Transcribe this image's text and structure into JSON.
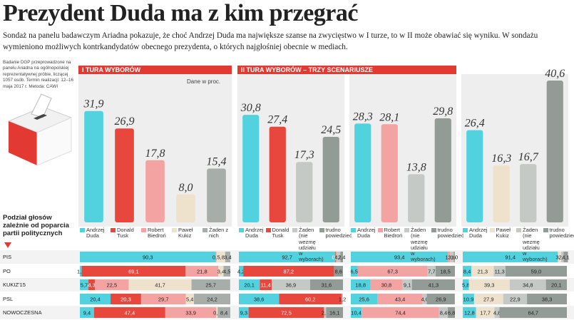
{
  "title": "Prezydent Duda ma z kim przegrać",
  "subtitle": "Sondaż na panelu badawczym Ariadna pokazuje, że choć Andrzej Duda ma największe szanse na zwycięstwo w I turze, to w II może obawiać się wyniku. W sondażu wymieniono możliwych kontrkandydatów obecnego prezydenta, o których najgłośniej obecnie w mediach.",
  "method_note": "Badanie DGP przeprowadzone na panelu Ariadna na ogólnopolskiej reprezentatywnej próbie, liczącej 1057 osób. Termin realizacji: 12–16 maja 2017 r. Metoda: CAWI",
  "round1_header": "I TURA WYBORÓW",
  "unit_note": "Dane w proc.",
  "round2_header": "II TURA WYBORÓW – TRZY SCENARIUSZE",
  "breakdown_title": "Podział głosów zależnie od poparcia partii politycznych",
  "parties": [
    "PIS",
    "PO",
    "KUKIZ'15",
    "PSL",
    "NOWOCZESNA"
  ],
  "chart_data": [
    {
      "type": "bar",
      "categories": [
        "Andrzej Duda",
        "Donald Tusk",
        "Robert Biedroń",
        "Paweł Kukiz",
        "Żaden z nich"
      ],
      "colors": [
        "#52d2df",
        "#e8473e",
        "#f3a4a2",
        "#efe2cc",
        "#a7aeaa"
      ],
      "values": [
        31.9,
        26.9,
        17.8,
        8.0,
        15.4
      ],
      "value_labels": [
        "31,9",
        "26,9",
        "17,8",
        "8,0",
        "15,4"
      ],
      "breakdown": [
        {
          "values": [
            90.3,
            null,
            0.5,
            5.8,
            3.4
          ],
          "value_labels": [
            "90,3",
            null,
            "0,5",
            "5,8",
            "3,4"
          ]
        },
        {
          "values": [
            1.2,
            69.1,
            21.8,
            3.4,
            4.5
          ],
          "value_labels": [
            "1,2",
            "69,1",
            "21,8",
            "3,4",
            "4,5"
          ]
        },
        {
          "values": [
            5.7,
            4.3,
            22.5,
            41.7,
            25.7
          ],
          "value_labels": [
            "5,7",
            "4,3",
            "22,5",
            "41,7",
            "25,7"
          ]
        },
        {
          "values": [
            20.4,
            20.3,
            29.7,
            5.4,
            24.2
          ],
          "value_labels": [
            "20,4",
            "20,3",
            "29,7",
            "5,4",
            "24,2"
          ]
        },
        {
          "values": [
            9.4,
            47.4,
            33.9,
            0.9,
            8.4
          ],
          "value_labels": [
            "9,4",
            "47,4",
            "33,9",
            "0,9",
            "8,4"
          ]
        }
      ]
    },
    {
      "type": "bar",
      "categories": [
        "Andrzej Duda",
        "Donald Tusk",
        "Żaden (nie wezmę udziału w wyborach)",
        "trudno powiedzieć"
      ],
      "colors": [
        "#52d2df",
        "#e8473e",
        "#c4c9c6",
        "#939b97"
      ],
      "values": [
        30.8,
        27.4,
        17.3,
        24.5
      ],
      "value_labels": [
        "30,8",
        "27,4",
        "17,3",
        "24,5"
      ],
      "breakdown": [
        {
          "values": [
            92.7,
            0.7,
            4.2,
            2.4
          ],
          "value_labels": [
            "92,7",
            "0,7",
            "4,2",
            "2,4"
          ]
        },
        {
          "values": [
            4.2,
            87.2,
            null,
            8.6
          ],
          "value_labels": [
            "4,2",
            "87,2",
            null,
            "8,6"
          ]
        },
        {
          "values": [
            20.1,
            11.4,
            36.9,
            31.6
          ],
          "value_labels": [
            "20,1",
            "11,4",
            "36,9",
            "31,6"
          ]
        },
        {
          "values": [
            38.6,
            60.2,
            1.2,
            null
          ],
          "value_labels": [
            "38,6",
            "60,2",
            "1,2",
            null
          ]
        },
        {
          "values": [
            9.3,
            72.5,
            2.1,
            16.1
          ],
          "value_labels": [
            "9,3",
            "72,5",
            "2,1",
            "16,1"
          ]
        }
      ]
    },
    {
      "type": "bar",
      "categories": [
        "Andrzej Duda",
        "Robert Biedroń",
        "Żaden (nie wezmę udziału w wyborach)",
        "trudno powiedzieć"
      ],
      "colors": [
        "#52d2df",
        "#f3a4a2",
        "#c4c9c6",
        "#939b97"
      ],
      "values": [
        28.3,
        28.1,
        13.8,
        29.8
      ],
      "value_labels": [
        "28,3",
        "28,1",
        "13,8",
        "29,8"
      ],
      "breakdown": [
        {
          "values": [
            93.4,
            1.9,
            3.6,
            1.0
          ],
          "value_labels": [
            "93,4",
            "1,9",
            "3,6",
            "1,0"
          ]
        },
        {
          "values": [
            6.5,
            67.3,
            7.7,
            18.5
          ],
          "value_labels": [
            "6,5",
            "67,3",
            "7,7",
            "18,5"
          ]
        },
        {
          "values": [
            18.8,
            30.8,
            9.1,
            41.3
          ],
          "value_labels": [
            "18,8",
            "30,8",
            "9,1",
            "41,3"
          ]
        },
        {
          "values": [
            25.6,
            43.4,
            4.0,
            26.9
          ],
          "value_labels": [
            "25,6",
            "43,4",
            "4,0",
            "26,9"
          ]
        },
        {
          "values": [
            10.4,
            74.4,
            8.4,
            6.8
          ],
          "value_labels": [
            "10,4",
            "74,4",
            "8,4",
            "6,8"
          ]
        }
      ]
    },
    {
      "type": "bar",
      "categories": [
        "Andrzej Duda",
        "Paweł Kukiz",
        "Żaden (nie wezmę udziału w wyborach)",
        "trudno powiedzieć"
      ],
      "colors": [
        "#52d2df",
        "#efe2cc",
        "#c4c9c6",
        "#939b97"
      ],
      "values": [
        26.4,
        16.3,
        16.7,
        40.6
      ],
      "value_labels": [
        "26,4",
        "16,3",
        "16,7",
        "40,6"
      ],
      "breakdown": [
        {
          "values": [
            91.4,
            3.1,
            2.4,
            4.1
          ],
          "value_labels": [
            "91,4",
            "3,1",
            "2,4",
            "4,1"
          ]
        },
        {
          "values": [
            8.4,
            21.3,
            11.3,
            59.0
          ],
          "value_labels": [
            "8,4",
            "21,3",
            "11,3",
            "59,0"
          ]
        },
        {
          "values": [
            5.8,
            39.3,
            34.8,
            20.1
          ],
          "value_labels": [
            "5,8",
            "39,3",
            "34,8",
            "20,1"
          ]
        },
        {
          "values": [
            10.9,
            27.9,
            22.9,
            38.3
          ],
          "value_labels": [
            "10,9",
            "27,9",
            "22,9",
            "38,3"
          ]
        },
        {
          "values": [
            12.8,
            17.7,
            4.8,
            64.7
          ],
          "value_labels": [
            "12,8",
            "17,7",
            "4,8",
            "64,7"
          ]
        }
      ]
    }
  ]
}
